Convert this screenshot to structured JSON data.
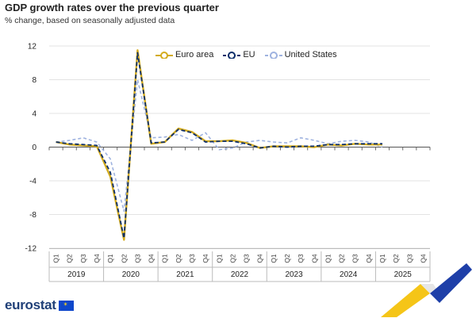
{
  "header": {
    "title": "GDP growth rates over the previous quarter",
    "subtitle": "% change, based on seasonally adjusted data"
  },
  "brand": {
    "logo_text": "eurostat",
    "flag_icon": "eu-flag-icon"
  },
  "colors": {
    "euro_area": "#d3ab1e",
    "eu": "#0e2f6b",
    "us": "#9fb3e0",
    "grid": "#e3e3e3",
    "axis": "#555555"
  },
  "chart_data": {
    "type": "line",
    "title": "GDP growth rates over the previous quarter",
    "subtitle": "% change, based on seasonally adjusted data",
    "xlabel": "",
    "ylabel": "",
    "ylim": [
      -12,
      12
    ],
    "yticks": [
      12,
      8,
      4,
      0,
      -4,
      -8,
      -12
    ],
    "grid": true,
    "legend": "top",
    "years": [
      "2019",
      "2020",
      "2021",
      "2022",
      "2023",
      "2024",
      "2025"
    ],
    "quarters": [
      "Q1",
      "Q2",
      "Q3",
      "Q4"
    ],
    "categories": [
      "2019 Q1",
      "2019 Q2",
      "2019 Q3",
      "2019 Q4",
      "2020 Q1",
      "2020 Q2",
      "2020 Q3",
      "2020 Q4",
      "2021 Q1",
      "2021 Q2",
      "2021 Q3",
      "2021 Q4",
      "2022 Q1",
      "2022 Q2",
      "2022 Q3",
      "2022 Q4",
      "2023 Q1",
      "2023 Q2",
      "2023 Q3",
      "2023 Q4",
      "2024 Q1",
      "2024 Q2",
      "2024 Q3",
      "2024 Q4",
      "2025 Q1",
      "2025 Q2",
      "2025 Q3",
      "2025 Q4"
    ],
    "series": [
      {
        "name": "Euro area",
        "style": "solid-thick",
        "values": [
          0.6,
          0.3,
          0.2,
          0.1,
          -3.5,
          -11.0,
          11.5,
          0.4,
          0.6,
          2.2,
          1.8,
          0.7,
          0.7,
          0.8,
          0.5,
          -0.1,
          0.1,
          0.1,
          0.1,
          0.0,
          0.3,
          0.2,
          0.4,
          0.3,
          0.3,
          null,
          null,
          null
        ]
      },
      {
        "name": "EU",
        "style": "dashed",
        "values": [
          0.6,
          0.4,
          0.3,
          0.2,
          -3.0,
          -10.8,
          11.2,
          0.5,
          0.6,
          2.1,
          1.7,
          0.6,
          0.7,
          0.7,
          0.4,
          -0.1,
          0.1,
          0.0,
          0.1,
          0.1,
          0.3,
          0.3,
          0.4,
          0.4,
          0.4,
          null,
          null,
          null
        ]
      },
      {
        "name": "United States",
        "style": "dashed-light",
        "values": [
          0.6,
          0.8,
          1.1,
          0.6,
          -1.4,
          -7.6,
          8.0,
          1.1,
          1.2,
          1.5,
          0.8,
          1.7,
          -0.3,
          -0.1,
          0.6,
          0.8,
          0.6,
          0.5,
          1.1,
          0.8,
          0.4,
          0.7,
          0.8,
          0.6,
          0.0,
          null,
          null,
          null
        ]
      }
    ]
  }
}
